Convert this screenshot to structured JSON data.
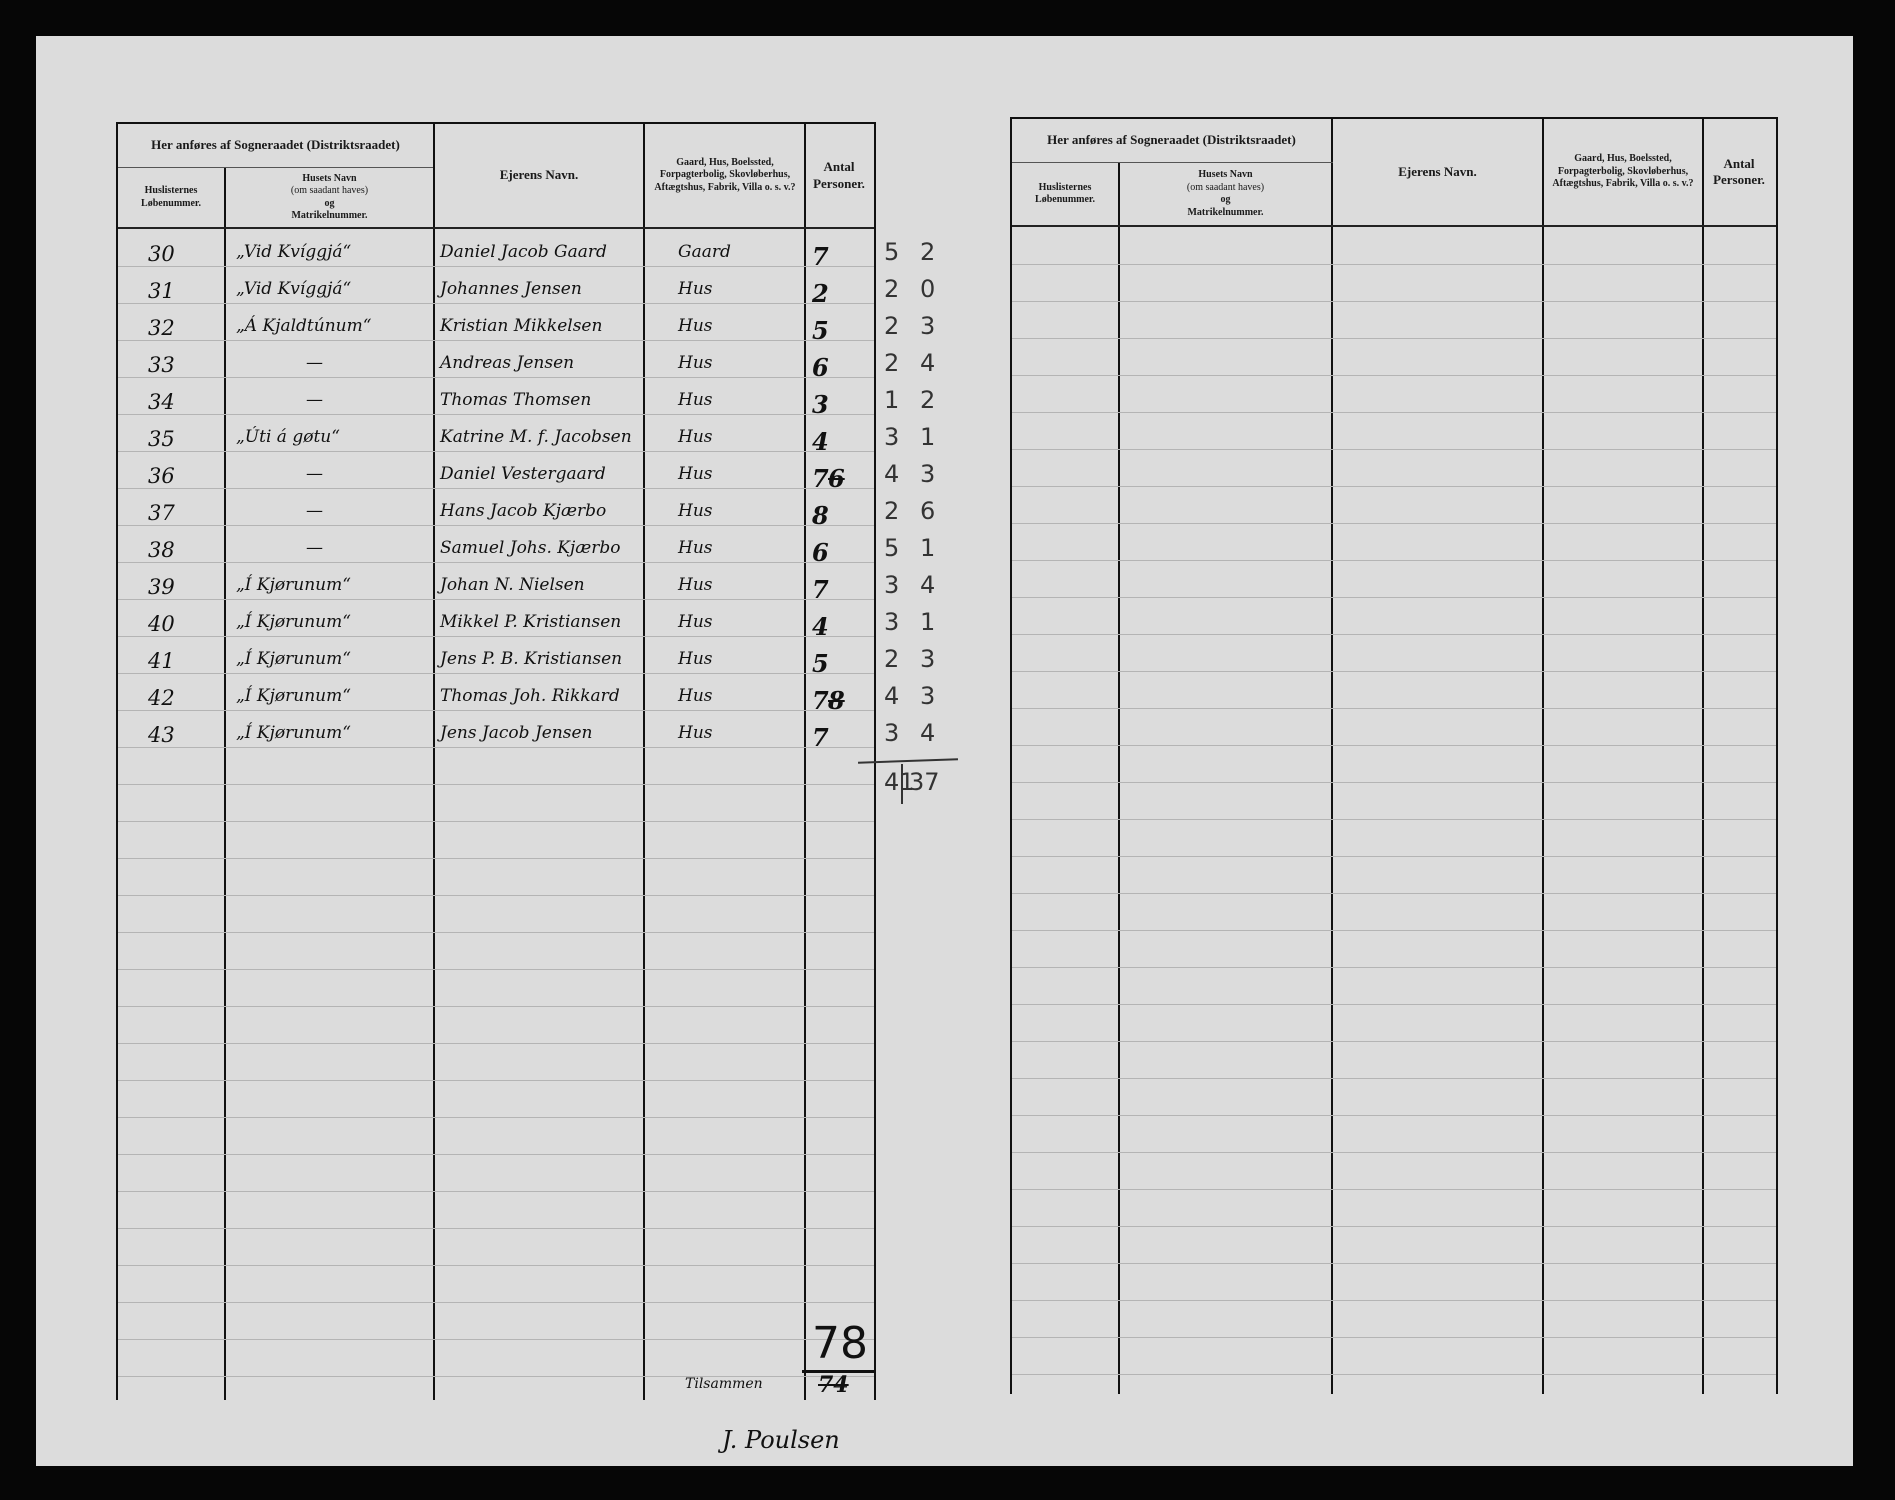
{
  "header": {
    "group_title": "Her anføres af Sogneraadet (Distriktsraadet)",
    "col_lobenummer": "Huslisternes Løbenummer.",
    "col_husets_navn_1": "Husets Navn",
    "col_husets_navn_2": "(om saadant haves)",
    "col_husets_navn_3": "og",
    "col_husets_navn_4": "Matrikelnummer.",
    "col_ejerens_navn": "Ejerens Navn.",
    "col_type": "Gaard, Hus, Boelssted, Forpagterbolig, Skovløberhus, Aftægtshus, Fabrik, Villa o. s. v.?",
    "col_antal": "Antal Personer."
  },
  "rows": [
    {
      "nr": "30",
      "house": "„Vid Kvíggjá“",
      "owner": "Daniel Jacob Gaard",
      "type": "Gaard",
      "persons": "7",
      "struck": "",
      "m1": "5",
      "m2": "2"
    },
    {
      "nr": "31",
      "house": "„Vid Kvíggjá“",
      "owner": "Johannes Jensen",
      "type": "Hus",
      "persons": "2",
      "struck": "",
      "m1": "2",
      "m2": "0"
    },
    {
      "nr": "32",
      "house": "„Á Kjaldtúnum“",
      "owner": "Kristian Mikkelsen",
      "type": "Hus",
      "persons": "5",
      "struck": "",
      "m1": "2",
      "m2": "3"
    },
    {
      "nr": "33",
      "house": "—",
      "owner": "Andreas Jensen",
      "type": "Hus",
      "persons": "6",
      "struck": "",
      "m1": "2",
      "m2": "4"
    },
    {
      "nr": "34",
      "house": "—",
      "owner": "Thomas Thomsen",
      "type": "Hus",
      "persons": "3",
      "struck": "",
      "m1": "1",
      "m2": "2"
    },
    {
      "nr": "35",
      "house": "„Úti á gøtu“",
      "owner": "Katrine M. f. Jacobsen",
      "type": "Hus",
      "persons": "4",
      "struck": "",
      "m1": "3",
      "m2": "1"
    },
    {
      "nr": "36",
      "house": "—",
      "owner": "Daniel Vestergaard",
      "type": "Hus",
      "persons": "7",
      "struck": "6",
      "m1": "4",
      "m2": "3"
    },
    {
      "nr": "37",
      "house": "—",
      "owner": "Hans Jacob Kjærbo",
      "type": "Hus",
      "persons": "8",
      "struck": "",
      "m1": "2",
      "m2": "6"
    },
    {
      "nr": "38",
      "house": "—",
      "owner": "Samuel Johs. Kjærbo",
      "type": "Hus",
      "persons": "6",
      "struck": "",
      "m1": "5",
      "m2": "1"
    },
    {
      "nr": "39",
      "house": "„Í Kjørunum“",
      "owner": "Johan N. Nielsen",
      "type": "Hus",
      "persons": "7",
      "struck": "",
      "m1": "3",
      "m2": "4"
    },
    {
      "nr": "40",
      "house": "„Í Kjørunum“",
      "owner": "Mikkel P. Kristiansen",
      "type": "Hus",
      "persons": "4",
      "struck": "",
      "m1": "3",
      "m2": "1"
    },
    {
      "nr": "41",
      "house": "„Í Kjørunum“",
      "owner": "Jens P. B. Kristiansen",
      "type": "Hus",
      "persons": "5",
      "struck": "",
      "m1": "2",
      "m2": "3"
    },
    {
      "nr": "42",
      "house": "„Í Kjørunum“",
      "owner": "Thomas Joh. Rikkard",
      "type": "Hus",
      "persons": "7",
      "struck": "8",
      "m1": "4",
      "m2": "3"
    },
    {
      "nr": "43",
      "house": "„Í Kjørunum“",
      "owner": "Jens Jacob Jensen",
      "type": "Hus",
      "persons": "7",
      "struck": "",
      "m1": "3",
      "m2": "4"
    }
  ],
  "margin_totals": {
    "m1": "41",
    "m2": "37"
  },
  "footer": {
    "tilsammen_label": "Tilsammen",
    "total": "78",
    "total_struck": "74",
    "signature": "J. Poulsen"
  }
}
